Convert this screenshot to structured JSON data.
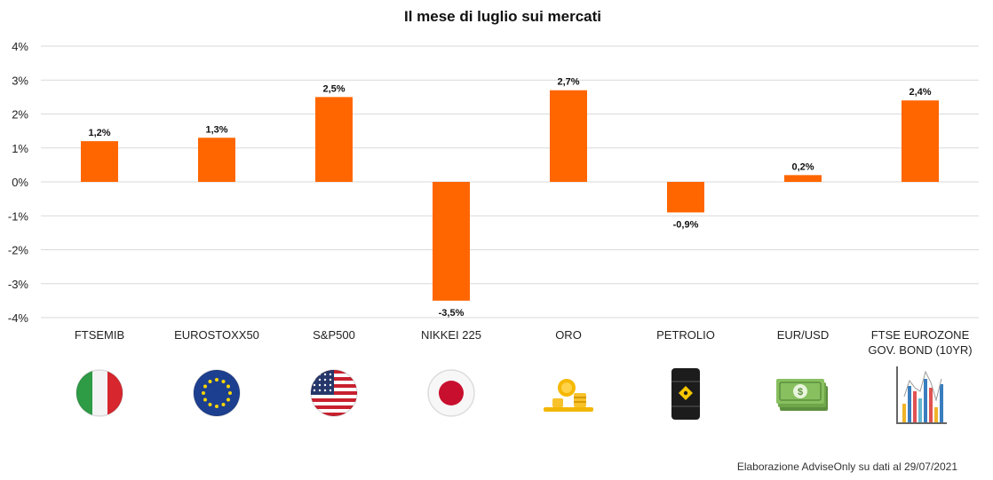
{
  "chart_data": {
    "type": "bar",
    "title": "Il mese di luglio sui mercati",
    "xlabel": "",
    "ylabel": "",
    "ylim": [
      -4,
      4
    ],
    "yticks": [
      4,
      3,
      2,
      1,
      0,
      -1,
      -2,
      -3,
      -4
    ],
    "ytick_labels": [
      "4%",
      "3%",
      "2%",
      "1%",
      "0%",
      "-1%",
      "-2%",
      "-3%",
      "-4%"
    ],
    "categories": [
      [
        "FTSEMIB"
      ],
      [
        "EUROSTOXX50"
      ],
      [
        "S&P500"
      ],
      [
        "NIKKEI 225"
      ],
      [
        "ORO"
      ],
      [
        "PETROLIO"
      ],
      [
        "EUR/USD"
      ],
      [
        "FTSE EUROZONE",
        "GOV. BOND (10YR)"
      ]
    ],
    "values": [
      1.2,
      1.3,
      2.5,
      -3.5,
      2.7,
      -0.9,
      0.2,
      2.4
    ],
    "data_labels": [
      "1,2%",
      "1,3%",
      "2,5%",
      "-3,5%",
      "2,7%",
      "-0,9%",
      "0,2%",
      "2,4%"
    ],
    "bar_color": "#ff6600",
    "grid": true,
    "icons": [
      "italy-flag-icon",
      "eu-flag-icon",
      "usa-flag-icon",
      "japan-flag-icon",
      "gold-coins-icon",
      "oil-barrel-icon",
      "banknotes-icon",
      "bar-chart-icon"
    ]
  },
  "source_note": "Elaborazione AdviseOnly su dati al 29/07/2021"
}
